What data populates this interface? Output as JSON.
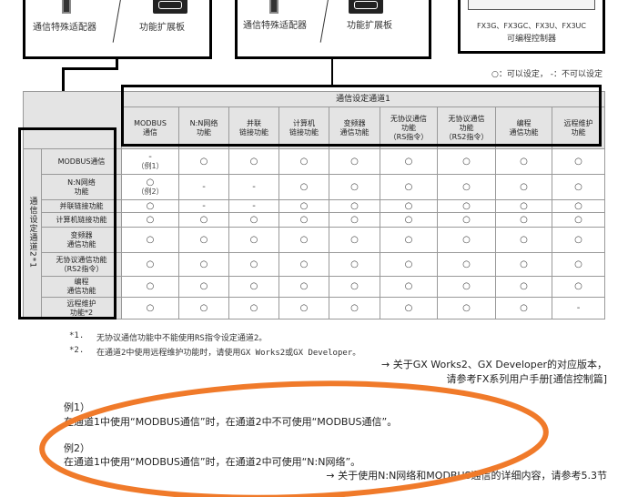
{
  "diagram": {
    "box1": {
      "left_label": "通信特殊适配器",
      "right_label": "功能扩展板"
    },
    "box2": {
      "left_label": "通信特殊适配器",
      "right_label": "功能扩展板"
    },
    "box3": {
      "model_label": "FX3G、FX3GC、FX3U、FX3UC",
      "type_label": "可编程控制器"
    }
  },
  "legend": "○：可以设定， -：不可以设定",
  "table": {
    "channel1_title": "通信设定通道1",
    "channel2_title": "通信设定通道2*1",
    "columns": [
      "MODBUS\n通信",
      "N:N网络\n功能",
      "并联\n链接功能",
      "计算机\n链接功能",
      "变频器\n通信功能",
      "无协议通信\n功能\n（RS指令）",
      "无协议通信\n功能\n（RS2指令）",
      "编程\n通信功能",
      "远程维护\n功能"
    ],
    "rows": [
      {
        "label": "MODBUS通信",
        "cells": [
          "-|（例1）",
          "○",
          "○",
          "○",
          "○",
          "○",
          "○",
          "○",
          "○"
        ]
      },
      {
        "label": "N:N网络\n功能",
        "cells": [
          "○|（例2）",
          "-",
          "-",
          "○",
          "○",
          "○",
          "○",
          "○",
          "○"
        ]
      },
      {
        "label": "并联链接功能",
        "cells": [
          "○",
          "-",
          "-",
          "○",
          "○",
          "○",
          "○",
          "○",
          "○"
        ]
      },
      {
        "label": "计算机链接功能",
        "cells": [
          "○",
          "○",
          "○",
          "○",
          "○",
          "○",
          "○",
          "○",
          "○"
        ]
      },
      {
        "label": "变频器\n通信功能",
        "cells": [
          "○",
          "○",
          "○",
          "○",
          "○",
          "○",
          "○",
          "○",
          "○"
        ]
      },
      {
        "label": "无协议通信功能\n（RS2指令）",
        "cells": [
          "○",
          "○",
          "○",
          "○",
          "○",
          "○",
          "○",
          "○",
          "○"
        ]
      },
      {
        "label": "编程\n通信功能",
        "cells": [
          "○",
          "○",
          "○",
          "○",
          "○",
          "○",
          "○",
          "○",
          "○"
        ]
      },
      {
        "label": "远程维护\n功能*2",
        "cells": [
          "○",
          "○",
          "○",
          "○",
          "○",
          "○",
          "○",
          "○",
          "-"
        ]
      }
    ]
  },
  "footnotes": [
    {
      "mark": "*1.",
      "text": "无协议通信功能中不能使用RS指令设定通道2。"
    },
    {
      "mark": "*2.",
      "text": "在通道2中使用远程维护功能时，请使用GX Works2或GX Developer。"
    }
  ],
  "reference1": {
    "line1": "→ 关于GX Works2、GX Developer的对应版本，",
    "line2": "请参考FX系列用户手册[通信控制篇]"
  },
  "examples": [
    {
      "title": "例1）",
      "text": "在通道1中使用“MODBUS通信”时，在通道2中不可使用“MODBUS通信”。"
    },
    {
      "title": "例2）",
      "text": "在通道1中使用“MODBUS通信”时，在通道2中可使用“N:N网络”。"
    }
  ],
  "reference2": "→ 关于使用N:N网络和MODBUS通信的详细内容，请参考5.3节",
  "annotation_color": "#F07A2A"
}
